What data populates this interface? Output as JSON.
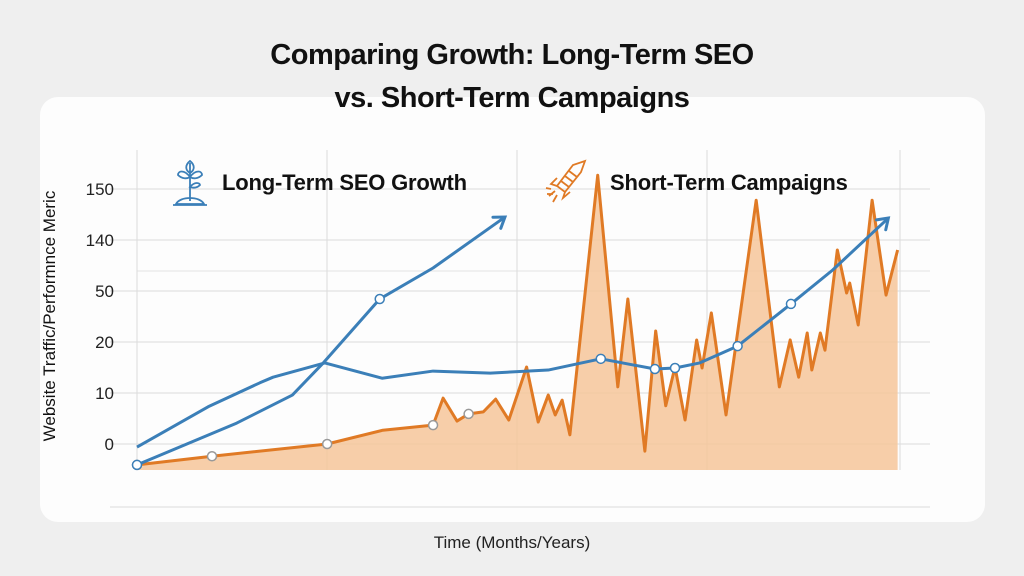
{
  "chart_data": {
    "type": "line",
    "title": "Comparing Growth: Long-Term SEO vs. Short-Term Campaigns",
    "title_lines": [
      "Comparing Growth: Long-Term SEO",
      "vs. Short-Term Campaigns"
    ],
    "xlabel": "Time (Months/Years)",
    "ylabel": "Website Traffic/Performnce Meric",
    "y_ticks": [
      0,
      10,
      20,
      50,
      140,
      150
    ],
    "y_scale": "non-uniform (equally spaced tick labels)",
    "x_ticks": [],
    "xlim": [
      0,
      100
    ],
    "grid": true,
    "legend_placement": "top",
    "legend": [
      {
        "label": "Long-Term SEO Growth",
        "icon": "sprout-icon",
        "color": "#3b7fb8"
      },
      {
        "label": "Short-Term Campaigns",
        "icon": "rocket-icon",
        "color": "#e07a25"
      }
    ],
    "series": [
      {
        "color": "#3b7fb8",
        "arrow": true,
        "markers": [
          0,
          4
        ],
        "x": [
          0,
          12.9,
          20.1,
          24.1,
          31.4,
          38.3,
          47.6
        ],
        "y": [
          -4.1,
          4.1,
          9.6,
          15.9,
          45.3,
          90.6,
          144.5
        ]
      },
      {
        "color": "#3b7fb8",
        "arrow": true,
        "markers": [
          9,
          10,
          11,
          13,
          14
        ],
        "x": [
          0,
          9.2,
          15.9,
          17.6,
          24.3,
          31.7,
          38.3,
          45.7,
          53.2,
          60.0,
          67.0,
          69.6,
          72.8,
          77.7,
          84.6,
          90.0,
          97.2
        ],
        "y": [
          -0.6,
          7.3,
          12.0,
          13.1,
          15.9,
          12.9,
          14.3,
          13.9,
          14.5,
          16.7,
          14.7,
          14.9,
          15.9,
          19.2,
          42.4,
          87.1,
          144.3
        ]
      },
      {
        "color": "#e07a25",
        "fill": "#f6c59a",
        "area": true,
        "markers": [
          0,
          1,
          2,
          4,
          7
        ],
        "x": [
          0,
          9.7,
          24.6,
          31.8,
          38.3,
          39.6,
          41.4,
          42.9,
          44.8,
          46.4,
          48.1,
          50.4,
          51.9,
          53.2,
          54.1,
          55.0,
          56.0,
          59.6,
          62.2,
          63.5,
          65.7,
          67.1,
          68.4,
          69.6,
          70.9,
          72.4,
          73.1,
          74.3,
          76.2,
          80.1,
          83.1,
          84.5,
          85.6,
          86.7,
          87.3,
          88.4,
          89.0,
          90.6,
          91.8,
          92.2,
          93.3,
          95.1,
          96.9,
          98.4
        ],
        "y": [
          -4.1,
          -2.4,
          0,
          2.7,
          3.7,
          9.0,
          4.5,
          5.9,
          6.3,
          8.8,
          4.7,
          15.1,
          4.3,
          9.6,
          5.7,
          8.6,
          1.8,
          152.7,
          11.2,
          45.3,
          -1.4,
          26.5,
          7.5,
          15.1,
          4.7,
          21.2,
          14.9,
          37.1,
          5.7,
          147.8,
          11.2,
          21.2,
          13.1,
          25.3,
          14.5,
          25.3,
          18.4,
          122.4,
          48.8,
          64.1,
          30.0,
          147.8,
          47.6,
          122.4
        ]
      }
    ]
  }
}
